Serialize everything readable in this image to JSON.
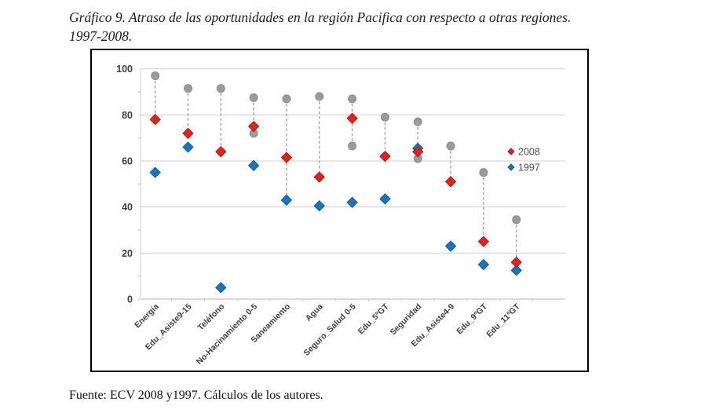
{
  "page": {
    "figure_title": "Gráfico 9. Atraso de las oportunidades en la región Pacifica con respecto a otras regiones. 1997-2008.",
    "source_note": "Fuente: ECV 2008 y1997. Cálculos de los autores."
  },
  "chart_data": {
    "type": "scatter",
    "variant": "dumbbell-dot-plot",
    "title": "Gráfico 9. Atraso de las oportunidades en la región Pacifica con respecto a otras regiones. 1997-2008.",
    "ylim": [
      0,
      100
    ],
    "yticks": [
      0,
      20,
      40,
      60,
      80,
      100
    ],
    "grid": true,
    "legend_position": "right-inside",
    "legend": [
      {
        "label": "2008",
        "color": "#e0231e",
        "marker": "diamond"
      },
      {
        "label": "1997",
        "color": "#1a75bc",
        "marker": "diamond"
      }
    ],
    "categories": [
      "Energía",
      "Edu_Asiste9-15",
      "Teléfono",
      "No-Hacinamiento 0-5",
      "Saneamiento",
      "Agua",
      "Seguro_Salud 0-5",
      "Edu_5ºGT",
      "Seguridad",
      "Edu_Asiste4-9",
      "Edu_9ºGT",
      "Edu_11ºGT"
    ],
    "series": [
      {
        "name": "2008",
        "marker": "diamond",
        "color": "#e0231e",
        "values": [
          78,
          72,
          64,
          75,
          61.5,
          53,
          78.5,
          62,
          64,
          51,
          25,
          16
        ]
      },
      {
        "name": "1997",
        "marker": "diamond",
        "color": "#1a75bc",
        "values": [
          55,
          66,
          5,
          58,
          43,
          40.5,
          42,
          43.5,
          65.5,
          23,
          15,
          12.5
        ]
      },
      {
        "name": "otras regiones (puntos grises)",
        "marker": "circle",
        "color": "#9b9b9b",
        "values_per_category": [
          [
            97
          ],
          [
            91.5
          ],
          [
            91.5
          ],
          [
            87.5,
            72
          ],
          [
            87
          ],
          [
            88
          ],
          [
            87,
            66.5
          ],
          [
            79
          ],
          [
            77,
            61
          ],
          [
            66.5
          ],
          [
            55
          ],
          [
            34.5
          ]
        ]
      }
    ],
    "dashed_ranges": [
      [
        97,
        78
      ],
      [
        91.5,
        72
      ],
      [
        91.5,
        64
      ],
      [
        87.5,
        72
      ],
      [
        87,
        43
      ],
      [
        88,
        53
      ],
      [
        87,
        66.5
      ],
      [
        79,
        62
      ],
      [
        77,
        61
      ],
      [
        66.5,
        51
      ],
      [
        55,
        25
      ],
      [
        34.5,
        16
      ]
    ]
  },
  "colors": {
    "red_2008": "#e0231e",
    "red_2008_edge": "#b3170f",
    "blue_1997": "#1a75bc",
    "blue_1997_edge": "#115a94",
    "gray_dot": "#9b9b9b",
    "gray_dot_edge": "#8a8a8a",
    "gridline": "#cfcfcf",
    "baseline": "#b5b5b5",
    "dashed_line": "#a6a6a6"
  }
}
